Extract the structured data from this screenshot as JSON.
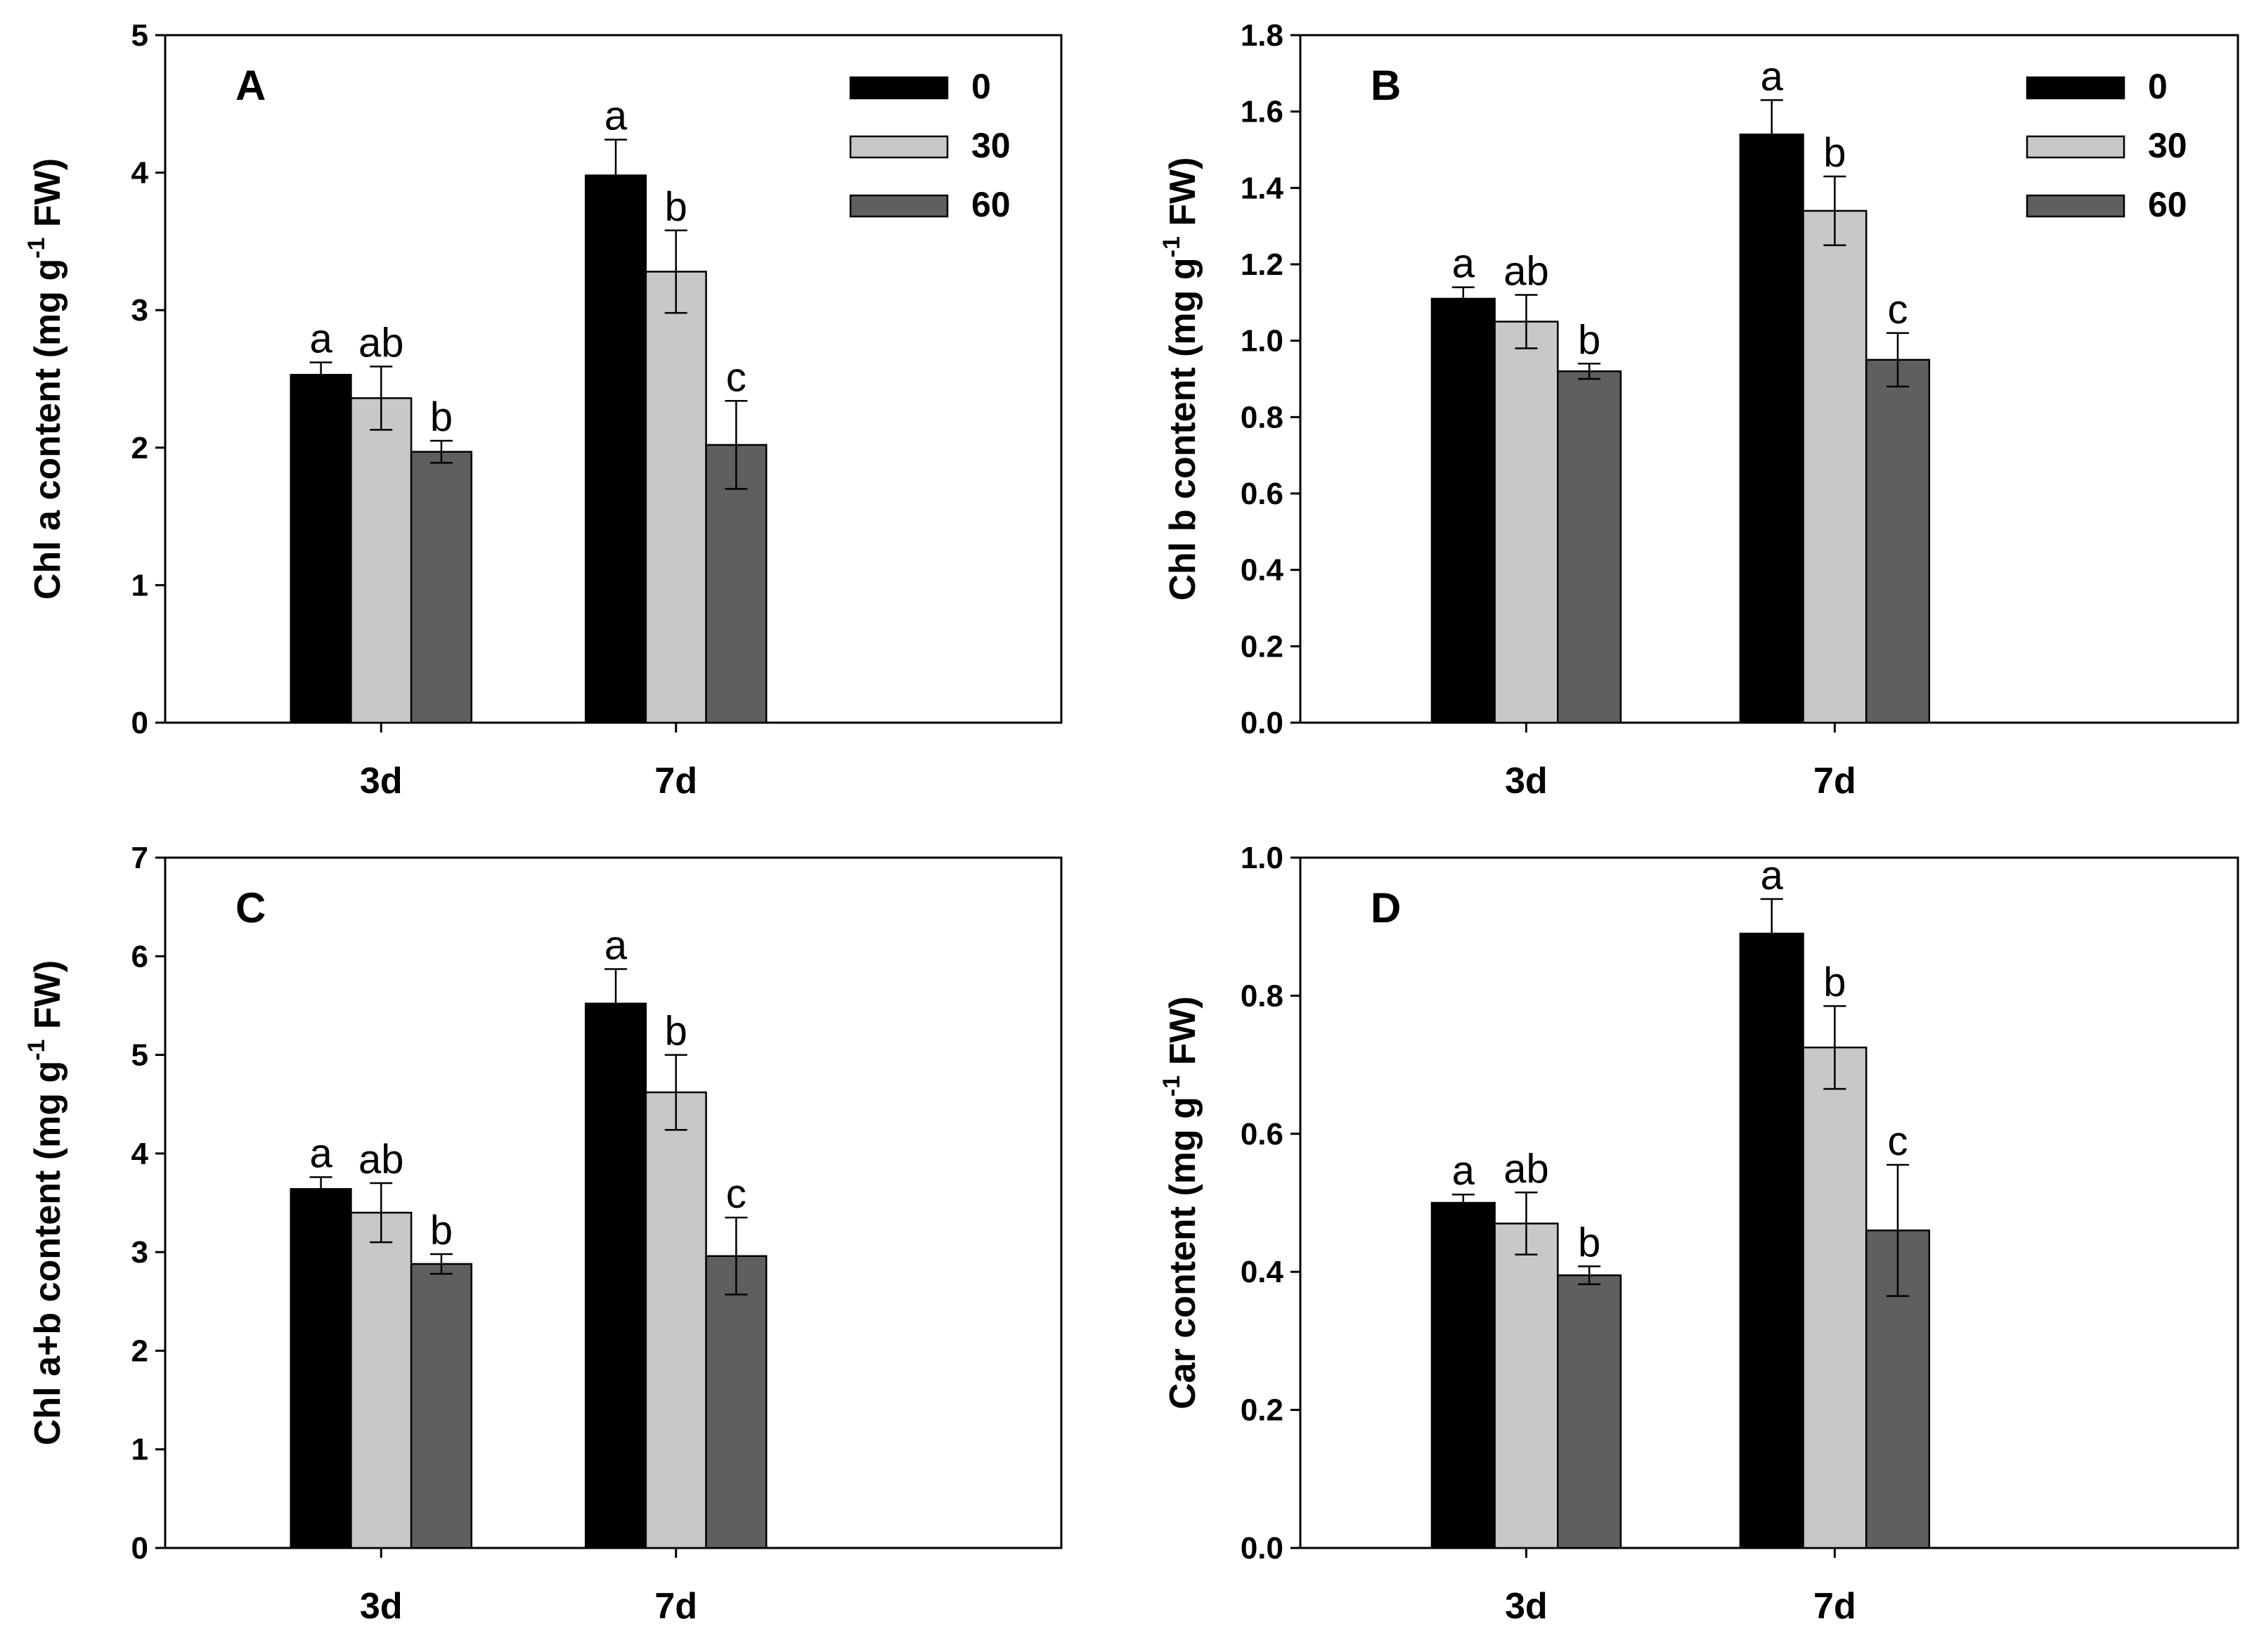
{
  "chart_data": [
    {
      "panel": "A",
      "type": "bar",
      "categories": [
        "3d",
        "7d"
      ],
      "ylabel": "Chl a content (mg g-1 FW)",
      "ylabel_parts": [
        "Chl a content (mg g",
        "-1",
        " FW)"
      ],
      "ylim": [
        0,
        5
      ],
      "yticks": [
        "0",
        "1",
        "2",
        "3",
        "4",
        "5"
      ],
      "legend": {
        "show": true,
        "position": "top-right"
      },
      "series": [
        {
          "name": "0",
          "color": "#000000",
          "values": [
            2.53,
            3.98
          ],
          "errors": [
            0.09,
            0.26
          ],
          "labels": [
            "a",
            "a"
          ]
        },
        {
          "name": "30",
          "color": "#c8c8c8",
          "values": [
            2.36,
            3.28
          ],
          "errors": [
            0.23,
            0.3
          ],
          "labels": [
            "ab",
            "b"
          ]
        },
        {
          "name": "60",
          "color": "#5f5f5f",
          "values": [
            1.97,
            2.02
          ],
          "errors": [
            0.08,
            0.32
          ],
          "labels": [
            "b",
            "c"
          ]
        }
      ]
    },
    {
      "panel": "B",
      "type": "bar",
      "categories": [
        "3d",
        "7d"
      ],
      "ylabel": "Chl b content (mg g-1 FW)",
      "ylabel_parts": [
        "Chl b content (mg g",
        "-1",
        " FW)"
      ],
      "ylim": [
        0,
        1.8
      ],
      "yticks": [
        "0.0",
        "0.2",
        "0.4",
        "0.6",
        "0.8",
        "1.0",
        "1.2",
        "1.4",
        "1.6",
        "1.8"
      ],
      "legend": {
        "show": true,
        "position": "top-right"
      },
      "series": [
        {
          "name": "0",
          "color": "#000000",
          "values": [
            1.11,
            1.54
          ],
          "errors": [
            0.03,
            0.09
          ],
          "labels": [
            "a",
            "a"
          ]
        },
        {
          "name": "30",
          "color": "#c8c8c8",
          "values": [
            1.05,
            1.34
          ],
          "errors": [
            0.07,
            0.09
          ],
          "labels": [
            "ab",
            "b"
          ]
        },
        {
          "name": "60",
          "color": "#5f5f5f",
          "values": [
            0.92,
            0.95
          ],
          "errors": [
            0.02,
            0.07
          ],
          "labels": [
            "b",
            "c"
          ]
        }
      ]
    },
    {
      "panel": "C",
      "type": "bar",
      "categories": [
        "3d",
        "7d"
      ],
      "ylabel": "Chl a+b content (mg g-1 FW)",
      "ylabel_parts": [
        "Chl a+b content (mg g",
        "-1",
        " FW)"
      ],
      "ylim": [
        0,
        7
      ],
      "yticks": [
        "0",
        "1",
        "2",
        "3",
        "4",
        "5",
        "6",
        "7"
      ],
      "legend": {
        "show": false
      },
      "series": [
        {
          "name": "0",
          "color": "#000000",
          "values": [
            3.64,
            5.52
          ],
          "errors": [
            0.12,
            0.35
          ],
          "labels": [
            "a",
            "a"
          ]
        },
        {
          "name": "30",
          "color": "#c8c8c8",
          "values": [
            3.4,
            4.62
          ],
          "errors": [
            0.3,
            0.38
          ],
          "labels": [
            "ab",
            "b"
          ]
        },
        {
          "name": "60",
          "color": "#5f5f5f",
          "values": [
            2.88,
            2.96
          ],
          "errors": [
            0.1,
            0.39
          ],
          "labels": [
            "b",
            "c"
          ]
        }
      ]
    },
    {
      "panel": "D",
      "type": "bar",
      "categories": [
        "3d",
        "7d"
      ],
      "ylabel": "Car content (mg g-1 FW)",
      "ylabel_parts": [
        "Car content (mg g",
        "-1",
        " FW)"
      ],
      "ylim": [
        0,
        1.0
      ],
      "yticks": [
        "0.0",
        "0.2",
        "0.4",
        "0.6",
        "0.8",
        "1.0"
      ],
      "legend": {
        "show": false
      },
      "series": [
        {
          "name": "0",
          "color": "#000000",
          "values": [
            0.5,
            0.89
          ],
          "errors": [
            0.012,
            0.05
          ],
          "labels": [
            "a",
            "a"
          ]
        },
        {
          "name": "30",
          "color": "#c8c8c8",
          "values": [
            0.47,
            0.725
          ],
          "errors": [
            0.045,
            0.06
          ],
          "labels": [
            "ab",
            "b"
          ]
        },
        {
          "name": "60",
          "color": "#5f5f5f",
          "values": [
            0.395,
            0.46
          ],
          "errors": [
            0.013,
            0.095
          ],
          "labels": [
            "b",
            "c"
          ]
        }
      ]
    }
  ]
}
